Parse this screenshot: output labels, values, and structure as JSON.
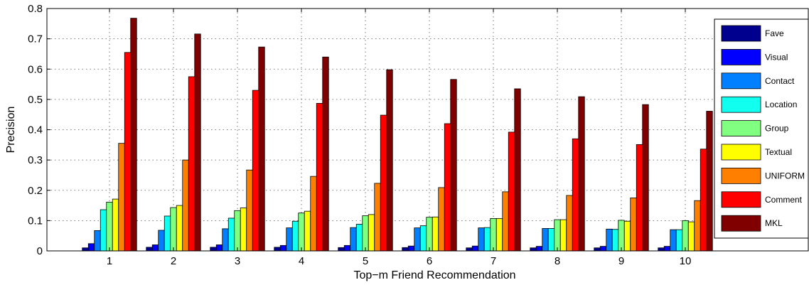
{
  "chart_data": {
    "type": "bar",
    "xlabel": "Top−m Friend Recommendation",
    "ylabel": "Precision",
    "ylim": [
      0,
      0.8
    ],
    "yticks": [
      "0",
      "0.1",
      "0.2",
      "0.3",
      "0.4",
      "0.5",
      "0.6",
      "0.7",
      "0.8"
    ],
    "categories": [
      "1",
      "2",
      "3",
      "4",
      "5",
      "6",
      "7",
      "8",
      "9",
      "10"
    ],
    "grid": true,
    "legend_position": "right",
    "series": [
      {
        "name": "Fave",
        "color": "#00008f",
        "values": [
          0.01,
          0.012,
          0.012,
          0.012,
          0.011,
          0.011,
          0.01,
          0.01,
          0.01,
          0.01
        ]
      },
      {
        "name": "Visual",
        "color": "#0000ff",
        "values": [
          0.024,
          0.02,
          0.02,
          0.018,
          0.018,
          0.016,
          0.016,
          0.015,
          0.015,
          0.015
        ]
      },
      {
        "name": "Contact",
        "color": "#0080ff",
        "values": [
          0.067,
          0.068,
          0.073,
          0.076,
          0.077,
          0.076,
          0.076,
          0.074,
          0.072,
          0.07
        ]
      },
      {
        "name": "Location",
        "color": "#10ffef",
        "values": [
          0.136,
          0.115,
          0.108,
          0.098,
          0.088,
          0.083,
          0.077,
          0.074,
          0.071,
          0.07
        ]
      },
      {
        "name": "Group",
        "color": "#80ff80",
        "values": [
          0.161,
          0.143,
          0.133,
          0.125,
          0.116,
          0.111,
          0.107,
          0.103,
          0.101,
          0.1
        ]
      },
      {
        "name": "Textual",
        "color": "#ffff00",
        "values": [
          0.171,
          0.15,
          0.142,
          0.131,
          0.12,
          0.112,
          0.107,
          0.103,
          0.098,
          0.096
        ]
      },
      {
        "name": "UNIFORM",
        "color": "#ff8000",
        "values": [
          0.355,
          0.3,
          0.267,
          0.246,
          0.223,
          0.209,
          0.195,
          0.183,
          0.175,
          0.166
        ]
      },
      {
        "name": "Comment",
        "color": "#ff0000",
        "values": [
          0.655,
          0.575,
          0.53,
          0.487,
          0.448,
          0.42,
          0.392,
          0.37,
          0.351,
          0.336
        ]
      },
      {
        "name": "MKL",
        "color": "#800000",
        "values": [
          0.768,
          0.716,
          0.673,
          0.64,
          0.598,
          0.566,
          0.535,
          0.509,
          0.483,
          0.461
        ]
      }
    ]
  }
}
